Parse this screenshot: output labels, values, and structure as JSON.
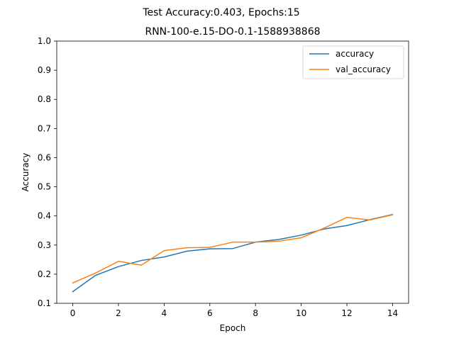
{
  "chart_data": {
    "type": "line",
    "suptitle": "Test Accuracy:0.403, Epochs:15",
    "title": "RNN-100-e.15-DO-0.1-1588938868",
    "xlabel": "Epoch",
    "ylabel": "Accuracy",
    "xlim": [
      -0.7,
      14.7
    ],
    "ylim": [
      0.1,
      1.0
    ],
    "xticks": [
      0,
      2,
      4,
      6,
      8,
      10,
      12,
      14
    ],
    "xtick_labels": [
      "0",
      "2",
      "4",
      "6",
      "8",
      "10",
      "12",
      "14"
    ],
    "yticks": [
      0.1,
      0.2,
      0.3,
      0.4,
      0.5,
      0.6,
      0.7,
      0.8,
      0.9,
      1.0
    ],
    "ytick_labels": [
      "0.1",
      "0.2",
      "0.3",
      "0.4",
      "0.5",
      "0.6",
      "0.7",
      "0.8",
      "0.9",
      "1.0"
    ],
    "grid": false,
    "legend_position": "upper right",
    "x": [
      0,
      1,
      2,
      3,
      4,
      5,
      6,
      7,
      8,
      9,
      10,
      11,
      12,
      13,
      14
    ],
    "series": [
      {
        "name": "accuracy",
        "color": "#1f77b4",
        "values": [
          0.14,
          0.196,
          0.226,
          0.247,
          0.259,
          0.279,
          0.287,
          0.288,
          0.31,
          0.319,
          0.334,
          0.355,
          0.367,
          0.387,
          0.405
        ]
      },
      {
        "name": "val_accuracy",
        "color": "#ff7f0e",
        "values": [
          0.17,
          0.204,
          0.244,
          0.231,
          0.281,
          0.291,
          0.292,
          0.31,
          0.31,
          0.313,
          0.325,
          0.358,
          0.395,
          0.386,
          0.404
        ]
      }
    ]
  }
}
